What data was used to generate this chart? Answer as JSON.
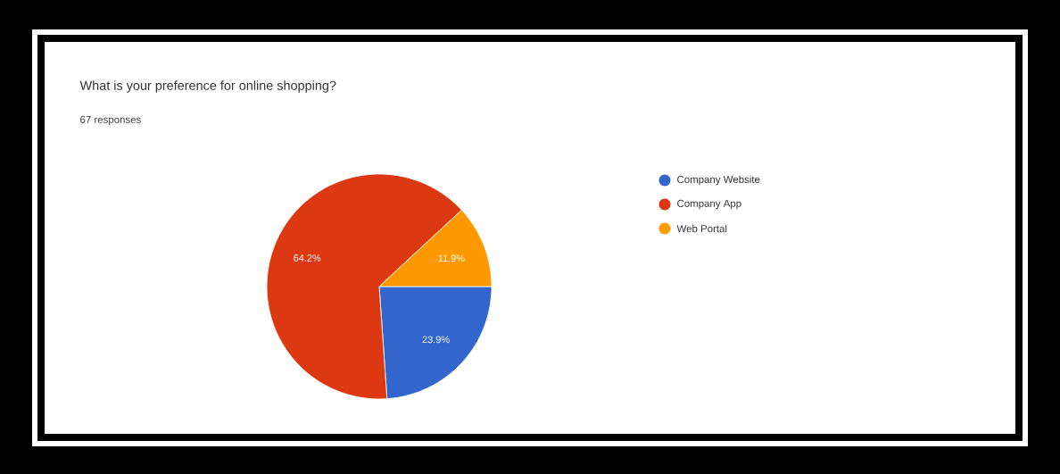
{
  "chart_data": {
    "type": "pie",
    "title": "What is your preference for online shopping?",
    "subtitle": "67 responses",
    "categories": [
      "Company Website",
      "Company App",
      "Web Portal"
    ],
    "values": [
      23.9,
      64.2,
      11.9
    ],
    "colors": [
      "#3366cc",
      "#dc3912",
      "#ff9900"
    ],
    "value_labels": [
      "23.9%",
      "64.2%",
      "11.9%"
    ],
    "legend": "right"
  }
}
